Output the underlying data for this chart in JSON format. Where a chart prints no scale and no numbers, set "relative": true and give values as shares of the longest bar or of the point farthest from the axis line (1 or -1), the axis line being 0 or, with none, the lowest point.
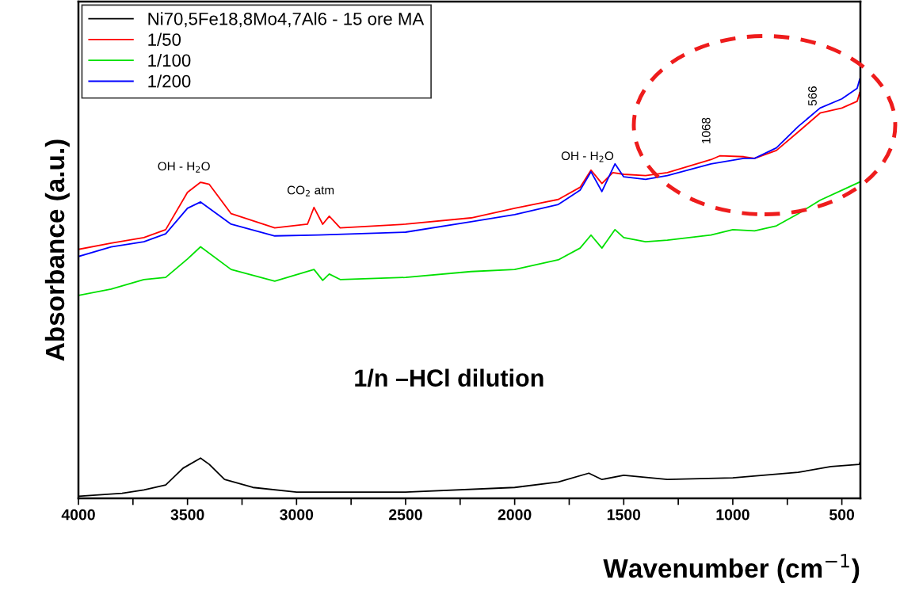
{
  "chart_data": {
    "type": "line",
    "relative": true,
    "xlabel": "Wavenumber (cm$^{−1}$)",
    "ylabel": "Absorbance (a.u.)",
    "xlim": [
      4000,
      415
    ],
    "xticks": [
      4000,
      {
        "value": 3750,
        "label": null
      },
      3500,
      {
        "value": 3250,
        "label": null
      },
      3000,
      {
        "value": 2750,
        "label": null
      },
      2500,
      {
        "value": 2250,
        "label": null
      },
      2000,
      {
        "value": 1750,
        "label": null
      },
      1500,
      {
        "value": 1250,
        "label": null
      },
      1000,
      {
        "value": 750,
        "label": null
      },
      500
    ],
    "tick_labels": "x",
    "legend": "top left",
    "grid": false,
    "line_style": "solid",
    "marker": "none",
    "series": [
      {
        "name": "Ni70,5Fe18,8Mo4,7Al6 - 15 ore MA",
        "color": "#000000",
        "x": [
          4000,
          3800,
          3700,
          3600,
          3520,
          3440,
          3400,
          3330,
          3200,
          3000,
          2500,
          2000,
          1800,
          1660,
          1600,
          1500,
          1300,
          1000,
          700,
          550,
          420,
          415
        ],
        "values": [
          0.005,
          0.012,
          0.02,
          0.032,
          0.072,
          0.096,
          0.081,
          0.045,
          0.026,
          0.015,
          0.015,
          0.026,
          0.039,
          0.06,
          0.045,
          0.055,
          0.045,
          0.049,
          0.062,
          0.076,
          0.081,
          0.088
        ]
      },
      {
        "name": "1/50",
        "color": "#ff0000",
        "x": [
          4000,
          3850,
          3700,
          3600,
          3500,
          3440,
          3400,
          3300,
          3100,
          2950,
          2920,
          2880,
          2850,
          2800,
          2500,
          2200,
          2000,
          1800,
          1700,
          1650,
          1600,
          1550,
          1500,
          1400,
          1300,
          1100,
          1060,
          950,
          900,
          800,
          700,
          600,
          500,
          430,
          418
        ],
        "values": [
          0.594,
          0.609,
          0.622,
          0.641,
          0.73,
          0.754,
          0.749,
          0.679,
          0.645,
          0.654,
          0.694,
          0.654,
          0.673,
          0.645,
          0.654,
          0.669,
          0.692,
          0.713,
          0.742,
          0.783,
          0.751,
          0.777,
          0.773,
          0.77,
          0.777,
          0.808,
          0.817,
          0.815,
          0.811,
          0.83,
          0.874,
          0.919,
          0.931,
          0.947,
          0.968
        ]
      },
      {
        "name": "1/100",
        "color": "#00e000",
        "x": [
          4000,
          3850,
          3700,
          3600,
          3500,
          3440,
          3300,
          3100,
          2920,
          2880,
          2850,
          2800,
          2500,
          2200,
          2000,
          1800,
          1700,
          1650,
          1600,
          1540,
          1500,
          1400,
          1300,
          1100,
          1000,
          900,
          800,
          700,
          600,
          500,
          420
        ],
        "values": [
          0.484,
          0.499,
          0.522,
          0.527,
          0.571,
          0.6,
          0.546,
          0.518,
          0.546,
          0.52,
          0.535,
          0.522,
          0.527,
          0.541,
          0.546,
          0.569,
          0.597,
          0.628,
          0.597,
          0.641,
          0.622,
          0.612,
          0.616,
          0.628,
          0.641,
          0.638,
          0.65,
          0.679,
          0.711,
          0.735,
          0.754
        ]
      },
      {
        "name": "1/200",
        "color": "#0000ff",
        "x": [
          4000,
          3850,
          3700,
          3600,
          3500,
          3440,
          3300,
          3100,
          2900,
          2500,
          2200,
          2000,
          1800,
          1700,
          1650,
          1600,
          1540,
          1500,
          1400,
          1300,
          1100,
          950,
          900,
          800,
          700,
          600,
          500,
          430,
          418
        ],
        "values": [
          0.577,
          0.6,
          0.612,
          0.631,
          0.692,
          0.707,
          0.654,
          0.626,
          0.628,
          0.635,
          0.66,
          0.677,
          0.701,
          0.735,
          0.779,
          0.732,
          0.798,
          0.767,
          0.761,
          0.77,
          0.798,
          0.811,
          0.811,
          0.836,
          0.887,
          0.931,
          0.953,
          0.978,
          1.0
        ]
      }
    ],
    "annotations": [
      "OH - H$_{2}$O",
      "CO$_{2}$ atm",
      "OH - H$_{2}$O",
      "1068",
      "566",
      "1/n –HCl dilution"
    ]
  }
}
